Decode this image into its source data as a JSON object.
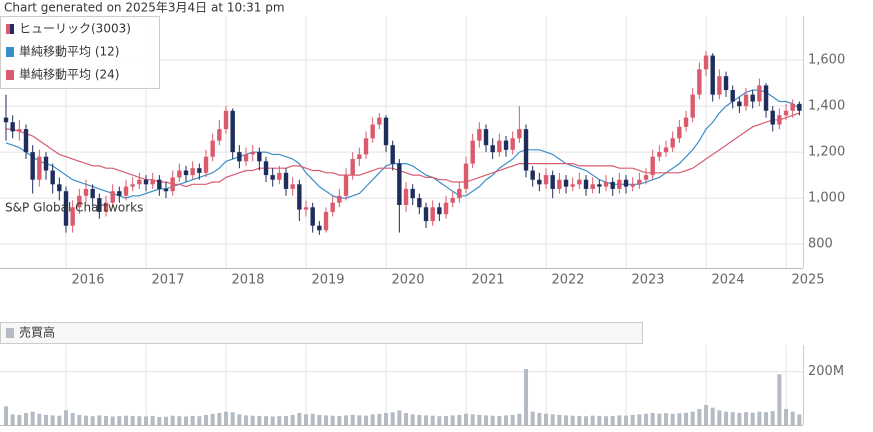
{
  "header": "Chart generated on 2025年3月4日 at 10:31 pm",
  "watermark": "S&P Global Chartworks",
  "chart_data": [
    {
      "type": "candlestick",
      "categories": [
        null,
        null,
        null,
        null,
        null,
        null,
        null,
        null,
        null,
        "2016",
        null,
        null,
        null,
        null,
        null,
        null,
        null,
        null,
        null,
        null,
        null,
        "2017",
        null,
        null,
        null,
        null,
        null,
        null,
        null,
        null,
        null,
        null,
        null,
        "2018",
        null,
        null,
        null,
        null,
        null,
        null,
        null,
        null,
        null,
        null,
        null,
        "2019",
        null,
        null,
        null,
        null,
        null,
        null,
        null,
        null,
        null,
        null,
        null,
        "2020",
        null,
        null,
        null,
        null,
        null,
        null,
        null,
        null,
        null,
        null,
        null,
        "2021",
        null,
        null,
        null,
        null,
        null,
        null,
        null,
        null,
        null,
        null,
        null,
        "2022",
        null,
        null,
        null,
        null,
        null,
        null,
        null,
        null,
        null,
        null,
        null,
        "2023",
        null,
        null,
        null,
        null,
        null,
        null,
        null,
        null,
        null,
        null,
        null,
        "2024",
        null,
        null,
        null,
        null,
        null,
        null,
        null,
        null,
        null,
        null,
        null,
        "2025",
        null,
        null
      ],
      "series": [
        {
          "name": "ヒューリック(3003)",
          "up_color": "#d95b6d",
          "down_color": "#1e2d5c",
          "open": [
            1350,
            1330,
            1290,
            1300,
            1200,
            1080,
            1180,
            1120,
            1060,
            1030,
            880,
            960,
            1010,
            1040,
            1000,
            940,
            980,
            1030,
            1010,
            1050,
            1060,
            1080,
            1060,
            1080,
            1040,
            1030,
            1090,
            1120,
            1100,
            1130,
            1110,
            1180,
            1250,
            1300,
            1380,
            1200,
            1160,
            1190,
            1200,
            1160,
            1100,
            1080,
            1110,
            1040,
            1060,
            950,
            960,
            880,
            860,
            940,
            980,
            1010,
            1100,
            1170,
            1190,
            1260,
            1320,
            1350,
            1230,
            1150,
            970,
            1040,
            1000,
            960,
            900,
            960,
            930,
            980,
            1000,
            1040,
            1150,
            1250,
            1300,
            1230,
            1200,
            1250,
            1210,
            1260,
            1300,
            1120,
            1080,
            1060,
            1100,
            1040,
            1080,
            1050,
            1060,
            1080,
            1040,
            1060,
            1050,
            1070,
            1040,
            1080,
            1050,
            1060,
            1080,
            1100,
            1180,
            1200,
            1220,
            1260,
            1310,
            1350,
            1450,
            1560,
            1620,
            1450,
            1530,
            1470,
            1420,
            1400,
            1450,
            1420,
            1490,
            1380,
            1320,
            1360,
            1380,
            1410
          ],
          "high": [
            1450,
            1360,
            1340,
            1320,
            1230,
            1210,
            1200,
            1150,
            1090,
            1050,
            990,
            1040,
            1080,
            1060,
            1020,
            1010,
            1060,
            1050,
            1080,
            1090,
            1110,
            1100,
            1110,
            1100,
            1070,
            1120,
            1150,
            1140,
            1160,
            1150,
            1210,
            1280,
            1340,
            1400,
            1390,
            1230,
            1220,
            1230,
            1220,
            1180,
            1130,
            1140,
            1130,
            1090,
            1080,
            990,
            980,
            900,
            960,
            1010,
            1040,
            1130,
            1200,
            1220,
            1290,
            1350,
            1370,
            1360,
            1250,
            1170,
            1070,
            1060,
            1020,
            980,
            990,
            980,
            1010,
            1030,
            1070,
            1180,
            1280,
            1330,
            1320,
            1260,
            1280,
            1270,
            1290,
            1400,
            1320,
            1140,
            1110,
            1130,
            1120,
            1110,
            1100,
            1090,
            1110,
            1100,
            1090,
            1080,
            1100,
            1090,
            1110,
            1100,
            1090,
            1110,
            1130,
            1210,
            1230,
            1250,
            1290,
            1340,
            1380,
            1480,
            1590,
            1640,
            1630,
            1560,
            1550,
            1490,
            1440,
            1480,
            1470,
            1520,
            1500,
            1400,
            1390,
            1410,
            1430,
            1420
          ],
          "low": [
            1250,
            1260,
            1250,
            1170,
            1020,
            1050,
            1080,
            1020,
            990,
            850,
            850,
            930,
            980,
            960,
            910,
            920,
            960,
            980,
            990,
            1030,
            1040,
            1030,
            1040,
            1010,
            1000,
            1010,
            1070,
            1070,
            1080,
            1080,
            1090,
            1160,
            1230,
            1280,
            1170,
            1130,
            1140,
            1160,
            1120,
            1070,
            1050,
            1060,
            1010,
            1010,
            900,
            920,
            850,
            840,
            850,
            920,
            960,
            990,
            1080,
            1140,
            1170,
            1240,
            1300,
            1200,
            1120,
            850,
            940,
            970,
            930,
            870,
            880,
            900,
            910,
            960,
            980,
            1020,
            1130,
            1220,
            1200,
            1170,
            1180,
            1180,
            1190,
            1240,
            1090,
            1050,
            1030,
            1040,
            1000,
            1020,
            1020,
            1030,
            1040,
            1010,
            1020,
            1020,
            1030,
            1010,
            1020,
            1020,
            1030,
            1040,
            1060,
            1080,
            1160,
            1180,
            1200,
            1240,
            1290,
            1330,
            1430,
            1530,
            1420,
            1430,
            1440,
            1390,
            1370,
            1380,
            1390,
            1400,
            1350,
            1290,
            1300,
            1340,
            1350,
            1360
          ],
          "close": [
            1330,
            1290,
            1300,
            1200,
            1080,
            1180,
            1120,
            1060,
            1030,
            880,
            960,
            1010,
            1040,
            1000,
            940,
            980,
            1030,
            1010,
            1050,
            1060,
            1080,
            1060,
            1080,
            1040,
            1030,
            1090,
            1120,
            1100,
            1130,
            1110,
            1180,
            1250,
            1300,
            1380,
            1200,
            1160,
            1190,
            1200,
            1160,
            1100,
            1080,
            1110,
            1040,
            1060,
            950,
            960,
            880,
            860,
            940,
            980,
            1010,
            1100,
            1170,
            1190,
            1260,
            1320,
            1350,
            1230,
            1150,
            970,
            1040,
            1000,
            960,
            900,
            960,
            930,
            980,
            1000,
            1040,
            1150,
            1250,
            1300,
            1230,
            1200,
            1250,
            1210,
            1260,
            1300,
            1120,
            1080,
            1060,
            1100,
            1040,
            1080,
            1050,
            1060,
            1080,
            1040,
            1060,
            1050,
            1070,
            1040,
            1080,
            1050,
            1060,
            1080,
            1100,
            1180,
            1200,
            1220,
            1260,
            1310,
            1350,
            1450,
            1560,
            1620,
            1450,
            1530,
            1470,
            1420,
            1400,
            1450,
            1420,
            1490,
            1380,
            1320,
            1360,
            1380,
            1410,
            1380
          ]
        },
        {
          "name": "単純移動平均 (12)",
          "type": "line",
          "color": "#3b8fc9",
          "values": [
            1240,
            1230,
            1220,
            1200,
            1180,
            1160,
            1150,
            1140,
            1120,
            1100,
            1080,
            1070,
            1060,
            1050,
            1040,
            1030,
            1020,
            1010,
            1000,
            1010,
            1010,
            1020,
            1030,
            1040,
            1040,
            1050,
            1060,
            1070,
            1080,
            1090,
            1100,
            1110,
            1130,
            1160,
            1170,
            1180,
            1190,
            1200,
            1200,
            1200,
            1190,
            1190,
            1180,
            1170,
            1150,
            1110,
            1080,
            1050,
            1030,
            1010,
            1000,
            1000,
            1010,
            1020,
            1050,
            1080,
            1110,
            1140,
            1150,
            1150,
            1150,
            1140,
            1120,
            1100,
            1090,
            1070,
            1050,
            1030,
            1010,
            1010,
            1030,
            1050,
            1080,
            1100,
            1130,
            1150,
            1170,
            1200,
            1210,
            1210,
            1210,
            1200,
            1190,
            1170,
            1150,
            1140,
            1130,
            1120,
            1100,
            1080,
            1070,
            1060,
            1060,
            1060,
            1060,
            1060,
            1070,
            1080,
            1090,
            1110,
            1130,
            1150,
            1180,
            1210,
            1250,
            1300,
            1330,
            1370,
            1400,
            1420,
            1440,
            1460,
            1470,
            1470,
            1460,
            1440,
            1420,
            1420,
            1410,
            1390
          ]
        },
        {
          "name": "単純移動平均 (24)",
          "type": "line",
          "color": "#d75c70",
          "values": [
            1300,
            1300,
            1290,
            1280,
            1270,
            1250,
            1230,
            1210,
            1190,
            1180,
            1170,
            1160,
            1150,
            1140,
            1140,
            1130,
            1130,
            1120,
            1110,
            1100,
            1090,
            1080,
            1080,
            1070,
            1070,
            1060,
            1060,
            1050,
            1060,
            1060,
            1060,
            1070,
            1070,
            1090,
            1100,
            1110,
            1120,
            1120,
            1130,
            1130,
            1130,
            1130,
            1130,
            1140,
            1140,
            1130,
            1120,
            1120,
            1110,
            1110,
            1100,
            1100,
            1100,
            1100,
            1110,
            1120,
            1130,
            1130,
            1130,
            1120,
            1110,
            1100,
            1100,
            1090,
            1090,
            1080,
            1080,
            1070,
            1070,
            1070,
            1080,
            1090,
            1100,
            1110,
            1120,
            1130,
            1140,
            1150,
            1150,
            1150,
            1150,
            1150,
            1150,
            1150,
            1150,
            1150,
            1140,
            1140,
            1140,
            1140,
            1140,
            1140,
            1130,
            1130,
            1130,
            1120,
            1110,
            1110,
            1110,
            1110,
            1110,
            1110,
            1120,
            1130,
            1150,
            1170,
            1190,
            1210,
            1230,
            1250,
            1270,
            1290,
            1310,
            1320,
            1330,
            1340,
            1340,
            1350,
            1360,
            1370
          ]
        }
      ],
      "ylim": [
        696,
        1792
      ],
      "yticks": [
        800,
        {
          "value": 1000,
          "label": "1,000"
        },
        {
          "value": 1200,
          "label": "1,200"
        },
        {
          "value": 1400,
          "label": "1,400"
        },
        {
          "value": 1600,
          "label": "1,600"
        }
      ],
      "grid": true,
      "legend": "top-left"
    },
    {
      "type": "bar",
      "series": [
        {
          "name": "売買高",
          "color": "#b4bbc3",
          "values": [
            70000000,
            40000000,
            38000000,
            45000000,
            50000000,
            42000000,
            38000000,
            36000000,
            35000000,
            55000000,
            45000000,
            38000000,
            35000000,
            33000000,
            36000000,
            34000000,
            32000000,
            33000000,
            35000000,
            34000000,
            33000000,
            32000000,
            34000000,
            30000000,
            31000000,
            35000000,
            33000000,
            32000000,
            34000000,
            33000000,
            38000000,
            42000000,
            45000000,
            50000000,
            48000000,
            40000000,
            36000000,
            35000000,
            34000000,
            33000000,
            32000000,
            33000000,
            34000000,
            38000000,
            45000000,
            40000000,
            42000000,
            38000000,
            36000000,
            35000000,
            34000000,
            36000000,
            38000000,
            36000000,
            35000000,
            40000000,
            42000000,
            45000000,
            48000000,
            55000000,
            45000000,
            40000000,
            38000000,
            36000000,
            35000000,
            33000000,
            34000000,
            36000000,
            38000000,
            42000000,
            40000000,
            38000000,
            36000000,
            35000000,
            34000000,
            36000000,
            38000000,
            42000000,
            210000000,
            50000000,
            45000000,
            42000000,
            40000000,
            38000000,
            36000000,
            35000000,
            34000000,
            33000000,
            35000000,
            34000000,
            33000000,
            34000000,
            36000000,
            35000000,
            38000000,
            40000000,
            42000000,
            45000000,
            43000000,
            44000000,
            42000000,
            44000000,
            46000000,
            50000000,
            60000000,
            75000000,
            65000000,
            55000000,
            50000000,
            48000000,
            45000000,
            48000000,
            46000000,
            50000000,
            48000000,
            52000000,
            190000000,
            60000000,
            50000000,
            40000000
          ]
        }
      ],
      "ylim": [
        0,
        300000000
      ],
      "yticks": [
        {
          "value": 200000000,
          "label": "200M"
        }
      ],
      "grid": true
    }
  ]
}
